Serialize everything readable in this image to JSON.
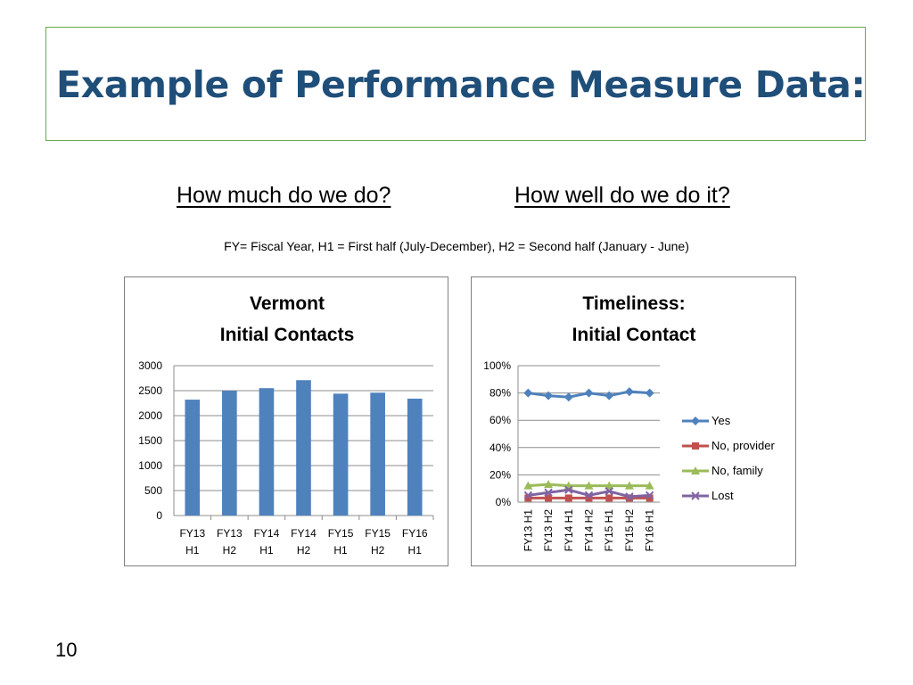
{
  "slide": {
    "title": "Example of Performance Measure Data:",
    "heading_left": "How much do we do?",
    "heading_right": "How well do we do it?",
    "note": "FY= Fiscal Year,  H1 = First half (July-December), H2 = Second half (January - June)",
    "page_number": "10"
  },
  "colors": {
    "title": "#1f4e79",
    "border": "#6aa84f",
    "bar": "#4f81bd"
  },
  "chart_data": [
    {
      "type": "bar",
      "title_lines": [
        "Vermont",
        "Initial Contacts"
      ],
      "categories": [
        [
          "FY13",
          "H1"
        ],
        [
          "FY13",
          "H2"
        ],
        [
          "FY14",
          "H1"
        ],
        [
          "FY14",
          "H2"
        ],
        [
          "FY15",
          "H1"
        ],
        [
          "FY15",
          "H2"
        ],
        [
          "FY16",
          "H1"
        ]
      ],
      "values": [
        2320,
        2500,
        2550,
        2710,
        2440,
        2460,
        2340
      ],
      "ylim": [
        0,
        3000
      ],
      "yticks": [
        "0",
        "500",
        "1000",
        "1500",
        "2000",
        "2500",
        "3000"
      ],
      "grid": true,
      "color": "#4f81bd"
    },
    {
      "type": "line",
      "title_lines": [
        "Timeliness:",
        "Initial Contact"
      ],
      "categories": [
        "FY13 H1",
        "FY13 H2",
        "FY14 H1",
        "FY14 H2",
        "FY15 H1",
        "FY15 H2",
        "FY16 H1"
      ],
      "ylim": [
        0,
        100
      ],
      "yticks": [
        "0%",
        "20%",
        "40%",
        "60%",
        "80%",
        "100%"
      ],
      "grid": true,
      "legend_position": "right",
      "series": [
        {
          "name": "Yes",
          "values": [
            80,
            78,
            77,
            80,
            78,
            81,
            80
          ],
          "color": "#4f81bd",
          "marker": "diamond"
        },
        {
          "name": "No, provider",
          "values": [
            3,
            3,
            3,
            3,
            3,
            3,
            3
          ],
          "color": "#c0504d",
          "marker": "square"
        },
        {
          "name": "No, family",
          "values": [
            12,
            13,
            12,
            12,
            12,
            12,
            12
          ],
          "color": "#9bbb59",
          "marker": "triangle"
        },
        {
          "name": "Lost",
          "values": [
            5,
            7,
            9,
            5,
            8,
            4,
            5
          ],
          "color": "#8064a2",
          "marker": "x"
        }
      ]
    }
  ]
}
